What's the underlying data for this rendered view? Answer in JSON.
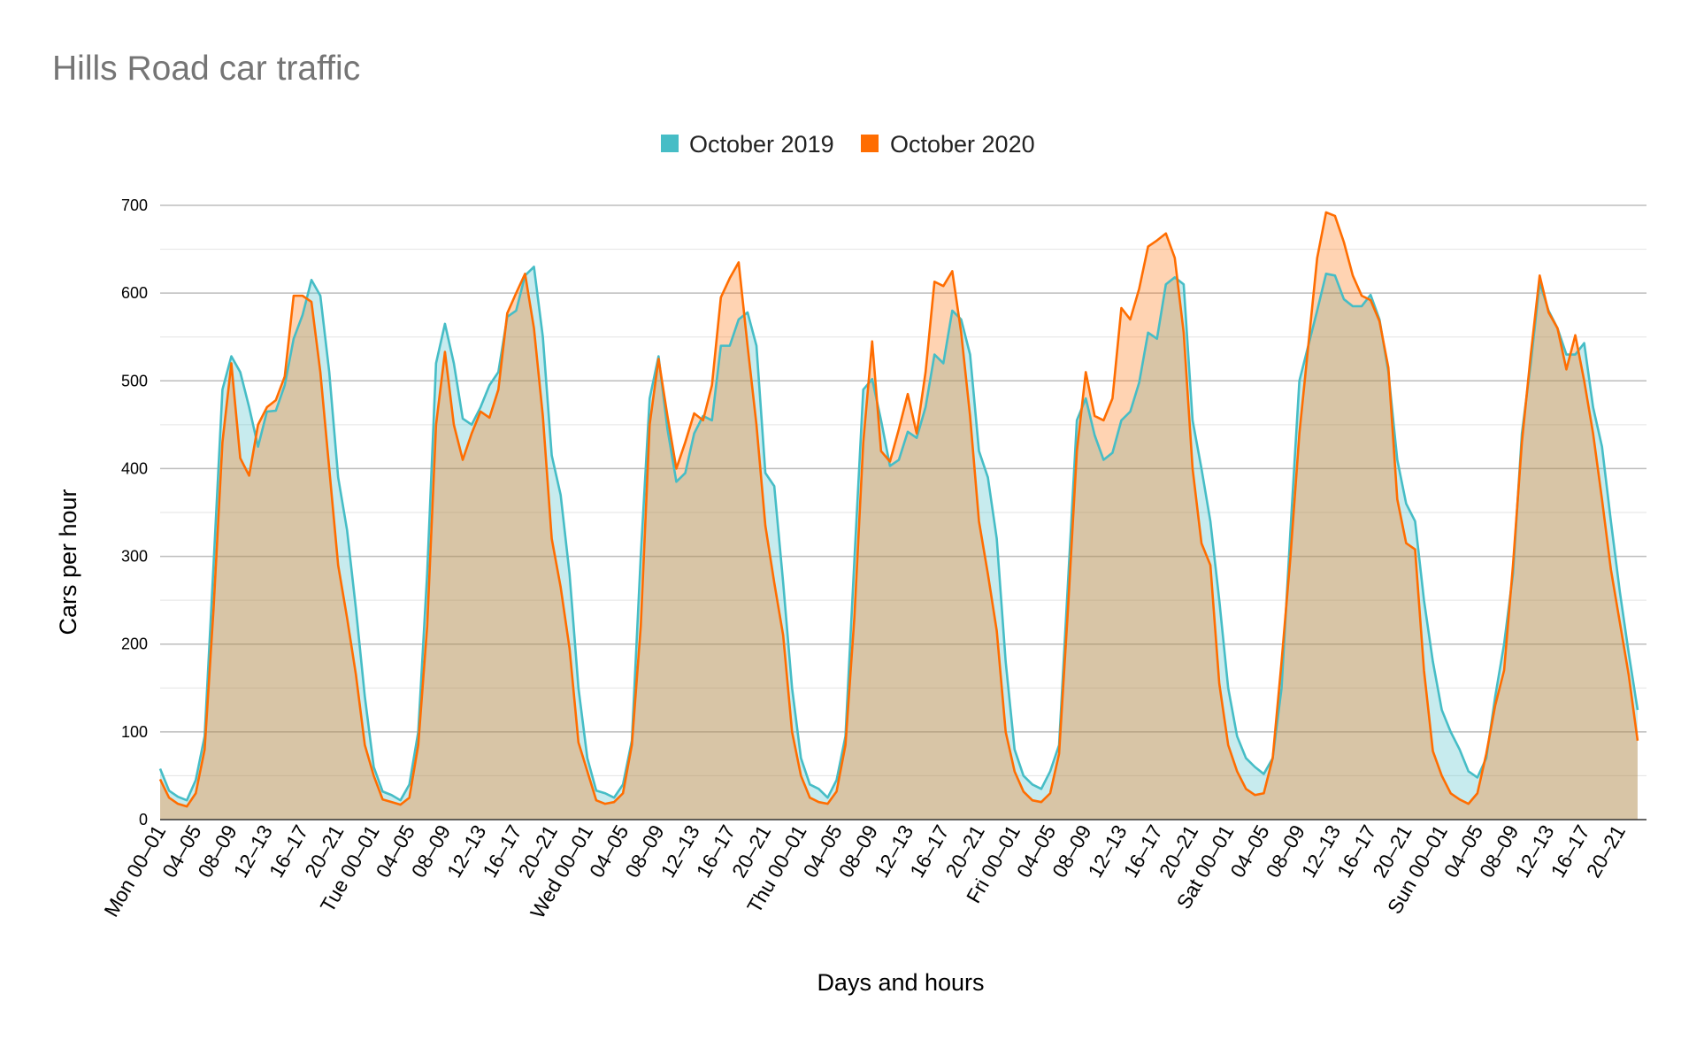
{
  "chart_data": {
    "type": "area",
    "title": "Hills Road car traffic",
    "xlabel": "Days and hours",
    "ylabel": "Cars per hour",
    "ylim": [
      0,
      700
    ],
    "y_ticks": [
      0,
      100,
      200,
      300,
      400,
      500,
      600,
      700
    ],
    "grid": true,
    "legend_position": "top",
    "x_tick_labels": [
      "Mon 00–01",
      "04–05",
      "08–09",
      "12–13",
      "16–17",
      "20–21",
      "Tue 00–01",
      "04–05",
      "08–09",
      "12–13",
      "16–17",
      "20–21",
      "Wed 00–01",
      "04–05",
      "08–09",
      "12–13",
      "16–17",
      "20–21",
      "Thu 00–01",
      "04–05",
      "08–09",
      "12–13",
      "16–17",
      "20–21",
      "Fri 00–01",
      "04–05",
      "08–09",
      "12–13",
      "16–17",
      "20–21",
      "Sat 00–01",
      "04–05",
      "08–09",
      "12–13",
      "16–17",
      "20–21",
      "Sun 00–01",
      "04–05",
      "08–09",
      "12–13",
      "16–17",
      "20–21"
    ],
    "series": [
      {
        "name": "October 2019",
        "color": "#46bdc6",
        "values": [
          58,
          33,
          26,
          22,
          45,
          95,
          290,
          490,
          528,
          510,
          470,
          425,
          465,
          466,
          495,
          548,
          575,
          615,
          597,
          510,
          390,
          330,
          240,
          140,
          60,
          32,
          28,
          22,
          40,
          100,
          280,
          520,
          565,
          520,
          457,
          450,
          470,
          495,
          510,
          573,
          580,
          620,
          630,
          550,
          415,
          370,
          280,
          150,
          70,
          33,
          30,
          25,
          40,
          90,
          300,
          480,
          528,
          445,
          385,
          395,
          440,
          460,
          455,
          540,
          540,
          570,
          578,
          540,
          395,
          380,
          270,
          150,
          70,
          40,
          35,
          25,
          45,
          95,
          295,
          490,
          502,
          455,
          403,
          410,
          442,
          435,
          470,
          530,
          520,
          580,
          570,
          530,
          420,
          390,
          320,
          180,
          80,
          50,
          40,
          35,
          55,
          85,
          270,
          455,
          480,
          438,
          410,
          418,
          455,
          465,
          498,
          555,
          548,
          610,
          618,
          610,
          455,
          400,
          340,
          250,
          150,
          95,
          70,
          60,
          52,
          70,
          150,
          330,
          500,
          540,
          580,
          622,
          620,
          593,
          585,
          585,
          598,
          570,
          510,
          410,
          360,
          340,
          250,
          180,
          125,
          100,
          80,
          55,
          48,
          70,
          140,
          200,
          280,
          440,
          520,
          612,
          580,
          560,
          530,
          530,
          543,
          470,
          425,
          340,
          260,
          190,
          125
        ]
      },
      {
        "name": "October 2020",
        "color": "#ff6d01",
        "values": [
          46,
          25,
          18,
          15,
          30,
          80,
          240,
          430,
          520,
          412,
          392,
          450,
          470,
          478,
          505,
          597,
          597,
          590,
          510,
          400,
          290,
          230,
          165,
          85,
          50,
          23,
          20,
          17,
          25,
          85,
          220,
          450,
          533,
          450,
          410,
          440,
          465,
          458,
          490,
          577,
          600,
          622,
          560,
          460,
          320,
          265,
          195,
          88,
          55,
          22,
          18,
          20,
          30,
          85,
          220,
          450,
          525,
          460,
          400,
          430,
          463,
          455,
          495,
          595,
          617,
          635,
          540,
          450,
          335,
          270,
          210,
          100,
          50,
          25,
          20,
          18,
          32,
          85,
          230,
          430,
          545,
          420,
          408,
          445,
          485,
          440,
          510,
          613,
          608,
          625,
          555,
          460,
          340,
          280,
          215,
          100,
          55,
          32,
          22,
          20,
          30,
          75,
          240,
          420,
          510,
          460,
          455,
          480,
          583,
          570,
          605,
          653,
          660,
          668,
          640,
          555,
          400,
          315,
          290,
          155,
          85,
          55,
          35,
          28,
          30,
          70,
          180,
          300,
          440,
          540,
          640,
          692,
          688,
          658,
          620,
          597,
          592,
          568,
          515,
          365,
          315,
          308,
          170,
          78,
          50,
          30,
          23,
          18,
          30,
          75,
          130,
          170,
          290,
          430,
          530,
          620,
          578,
          560,
          513,
          552,
          500,
          440,
          365,
          285,
          225,
          165,
          90
        ]
      }
    ]
  }
}
